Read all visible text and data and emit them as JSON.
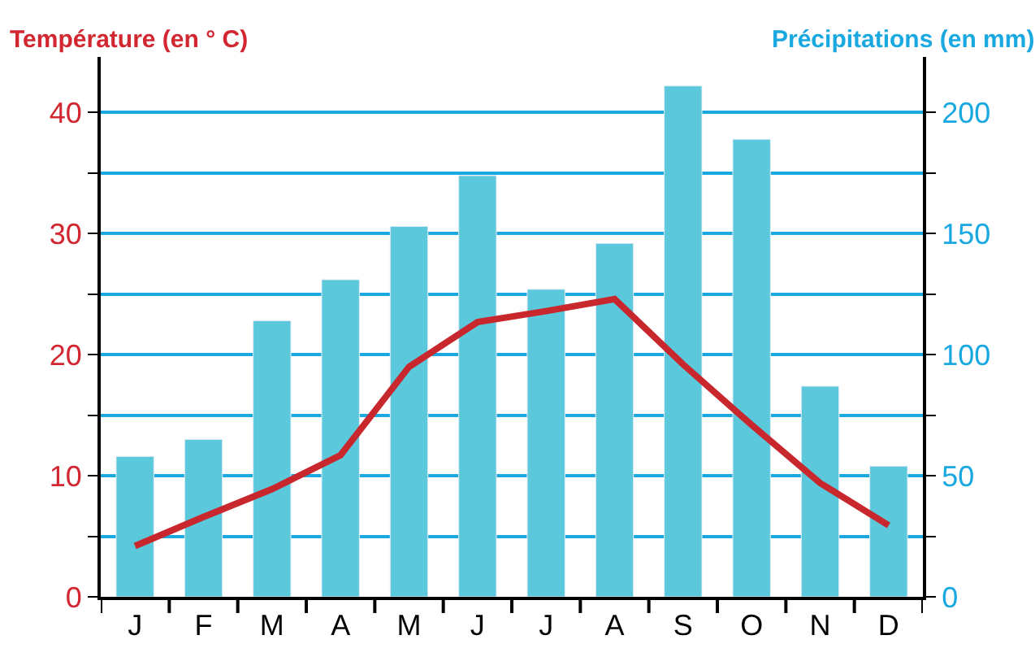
{
  "chart_data": {
    "type": "bar",
    "categories": [
      "J",
      "F",
      "M",
      "A",
      "M",
      "J",
      "J",
      "A",
      "S",
      "O",
      "N",
      "D"
    ],
    "ylabel": "Température (en ° C)",
    "y2label": "Précipitations (en mm)",
    "series": [
      {
        "axis": "y2",
        "color": "#5bc8dc",
        "values": [
          58,
          65,
          114,
          131,
          153,
          174,
          127,
          146,
          211,
          189,
          87,
          54
        ]
      },
      {
        "type": "line",
        "axis": "y",
        "color": "#c8282d",
        "values": [
          4.2,
          6.6,
          8.9,
          11.7,
          19,
          22.7,
          23.6,
          24.6,
          19.2,
          14.2,
          9.4,
          5.9
        ]
      }
    ],
    "ylim": [
      0,
      44.6
    ],
    "yticks": [
      0,
      {
        "value": 5,
        "label": null
      },
      10,
      {
        "value": 15,
        "label": null
      },
      20,
      {
        "value": 25,
        "label": null
      },
      30,
      {
        "value": 35,
        "label": null
      },
      40
    ],
    "y2lim": [
      0,
      223
    ],
    "y2ticks": [
      0,
      {
        "value": 25,
        "label": null
      },
      50,
      {
        "value": 75,
        "label": null
      },
      100,
      {
        "value": 125,
        "label": null
      },
      150,
      {
        "value": 175,
        "label": null
      },
      200
    ],
    "grid": "y",
    "marker": "none",
    "line_style": "solid"
  }
}
